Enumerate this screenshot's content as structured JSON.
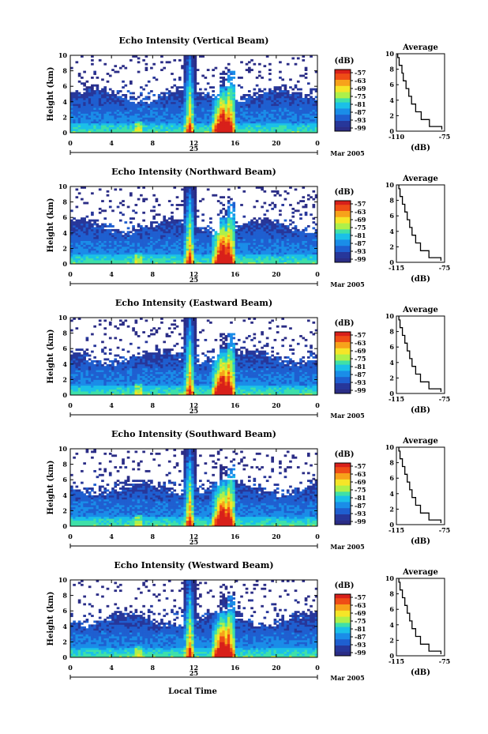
{
  "figure": {
    "xlabel": "Local Time"
  },
  "chart_data": [
    {
      "type": "heatmap",
      "title": "Echo Intensity (Vertical Beam)",
      "ylabel": "Height (km)",
      "yticks": [
        "0",
        "2",
        "4",
        "6",
        "8",
        "10"
      ],
      "ylim": [
        0,
        10
      ],
      "xticks": [
        "0",
        "4",
        "8",
        "12",
        "16",
        "20",
        "0"
      ],
      "xlim": [
        0,
        24
      ],
      "day_label": "25",
      "date_label": "Mar 2005",
      "colorbar": {
        "label": "(dB)",
        "ticks": [
          "-57",
          "-63",
          "-69",
          "-75",
          "-81",
          "-87",
          "-93",
          "-99"
        ]
      },
      "profile": {
        "title": "Average",
        "xlabel": "(dB)",
        "xticks": [
          "-110",
          "-75"
        ],
        "xlim": [
          -110,
          -75
        ],
        "yticks": [
          "0",
          "2",
          "4",
          "6",
          "8",
          "10"
        ],
        "heights": [
          0.2,
          1,
          2,
          3,
          4,
          5,
          6,
          7,
          8,
          9,
          10
        ],
        "values": [
          -77,
          -86,
          -92,
          -96,
          -99,
          -101,
          -103,
          -105,
          -106,
          -108,
          -109
        ]
      }
    },
    {
      "type": "heatmap",
      "title": "Echo Intensity (Northward Beam)",
      "ylabel": "Height (km)",
      "yticks": [
        "0",
        "2",
        "4",
        "6",
        "8",
        "10"
      ],
      "ylim": [
        0,
        10
      ],
      "xticks": [
        "0",
        "4",
        "8",
        "12",
        "16",
        "20",
        "0"
      ],
      "xlim": [
        0,
        24
      ],
      "day_label": "25",
      "date_label": "Mar 2005",
      "colorbar": {
        "label": "(dB)",
        "ticks": [
          "-57",
          "-63",
          "-69",
          "-75",
          "-81",
          "-87",
          "-93",
          "-99"
        ]
      },
      "profile": {
        "title": "Average",
        "xlabel": "(dB)",
        "xticks": [
          "-115",
          "-75"
        ],
        "xlim": [
          -115,
          -75
        ],
        "yticks": [
          "0",
          "2",
          "4",
          "6",
          "8",
          "10"
        ],
        "heights": [
          0.2,
          1,
          2,
          3,
          4,
          5,
          6,
          7,
          8,
          9,
          10
        ],
        "values": [
          -78,
          -88,
          -95,
          -99,
          -102,
          -104,
          -106,
          -108,
          -110,
          -112,
          -113
        ]
      }
    },
    {
      "type": "heatmap",
      "title": "Echo Intensity (Eastward Beam)",
      "ylabel": "Height (km)",
      "yticks": [
        "0",
        "2",
        "4",
        "6",
        "8",
        "10"
      ],
      "ylim": [
        0,
        10
      ],
      "xticks": [
        "0",
        "4",
        "8",
        "12",
        "16",
        "20",
        "0"
      ],
      "xlim": [
        0,
        24
      ],
      "day_label": "25",
      "date_label": "Mar 2005",
      "colorbar": {
        "label": "(dB)",
        "ticks": [
          "-57",
          "-63",
          "-69",
          "-75",
          "-81",
          "-87",
          "-93",
          "-99"
        ]
      },
      "profile": {
        "title": "Average",
        "xlabel": "(dB)",
        "xticks": [
          "-115",
          "-75"
        ],
        "xlim": [
          -115,
          -75
        ],
        "yticks": [
          "0",
          "2",
          "4",
          "6",
          "8",
          "10"
        ],
        "heights": [
          0.2,
          1,
          2,
          3,
          4,
          5,
          6,
          7,
          8,
          9,
          10
        ],
        "values": [
          -78,
          -88,
          -95,
          -99,
          -102,
          -104,
          -106,
          -108,
          -110,
          -112,
          -113
        ]
      }
    },
    {
      "type": "heatmap",
      "title": "Echo Intensity (Southward Beam)",
      "ylabel": "Height (km)",
      "yticks": [
        "0",
        "2",
        "4",
        "6",
        "8",
        "10"
      ],
      "ylim": [
        0,
        10
      ],
      "xticks": [
        "0",
        "4",
        "8",
        "12",
        "16",
        "20",
        "0"
      ],
      "xlim": [
        0,
        24
      ],
      "day_label": "25",
      "date_label": "Mar 2005",
      "colorbar": {
        "label": "(dB)",
        "ticks": [
          "-57",
          "-63",
          "-69",
          "-75",
          "-81",
          "-87",
          "-93",
          "-99"
        ]
      },
      "profile": {
        "title": "Average",
        "xlabel": "(dB)",
        "xticks": [
          "-115",
          "-75"
        ],
        "xlim": [
          -115,
          -75
        ],
        "yticks": [
          "0",
          "2",
          "4",
          "6",
          "8",
          "10"
        ],
        "heights": [
          0.2,
          1,
          2,
          3,
          4,
          5,
          6,
          7,
          8,
          9,
          10
        ],
        "values": [
          -78,
          -88,
          -95,
          -99,
          -102,
          -104,
          -106,
          -108,
          -110,
          -112,
          -113
        ]
      }
    },
    {
      "type": "heatmap",
      "title": "Echo Intensity (Westward Beam)",
      "ylabel": "Height (km)",
      "yticks": [
        "0",
        "2",
        "4",
        "6",
        "8",
        "10"
      ],
      "ylim": [
        0,
        10
      ],
      "xticks": [
        "0",
        "4",
        "8",
        "12",
        "16",
        "20",
        "0"
      ],
      "xlim": [
        0,
        24
      ],
      "day_label": "25",
      "date_label": "Mar 2005",
      "colorbar": {
        "label": "(dB)",
        "ticks": [
          "-57",
          "-63",
          "-69",
          "-75",
          "-81",
          "-87",
          "-93",
          "-99"
        ]
      },
      "profile": {
        "title": "Average",
        "xlabel": "(dB)",
        "xticks": [
          "-115",
          "-75"
        ],
        "xlim": [
          -115,
          -75
        ],
        "yticks": [
          "0",
          "2",
          "4",
          "6",
          "8",
          "10"
        ],
        "heights": [
          0.2,
          1,
          2,
          3,
          4,
          5,
          6,
          7,
          8,
          9,
          10
        ],
        "values": [
          -78,
          -88,
          -95,
          -99,
          -102,
          -104,
          -106,
          -108,
          -110,
          -112,
          -113
        ]
      }
    }
  ]
}
